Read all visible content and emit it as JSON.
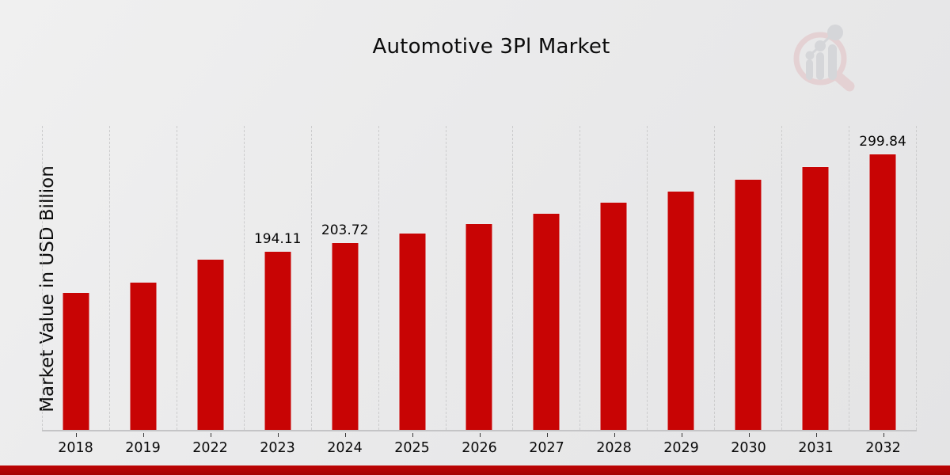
{
  "title": "Automotive 3Pl Market",
  "y_axis_label": "Market Value in USD Billion",
  "logo": {
    "name": "market-research-magnifier-logo",
    "ring_color": "#e2c0c2",
    "handle_color": "#e2c0c2",
    "bar_color": "#c7c9cd"
  },
  "colors": {
    "bar": "#c80404",
    "bar_edge": "#ededee",
    "bottom_strip": "#b10404",
    "background": "#e9e9ea",
    "gridline": "#cccccd",
    "axis_line": "#c4c4c6",
    "text": "#0a0a0a"
  },
  "chart_data": {
    "type": "bar",
    "title": "Automotive 3Pl Market",
    "xlabel": "",
    "ylabel": "Market Value in USD Billion",
    "categories": [
      "2018",
      "2019",
      "2022",
      "2023",
      "2024",
      "2025",
      "2026",
      "2027",
      "2028",
      "2029",
      "2030",
      "2031",
      "2032"
    ],
    "values": [
      149.5,
      160.7,
      186.0,
      194.11,
      203.72,
      214.0,
      224.5,
      236.0,
      247.5,
      259.8,
      272.5,
      286.0,
      299.84
    ],
    "data_labels": [
      "",
      "",
      "",
      "194.11",
      "203.72",
      "",
      "",
      "",
      "",
      "",
      "",
      "",
      "299.84"
    ],
    "ylim": [
      0,
      332
    ],
    "grid": "vertical-dashed",
    "legend": "none",
    "bar_color": "#c80404"
  }
}
